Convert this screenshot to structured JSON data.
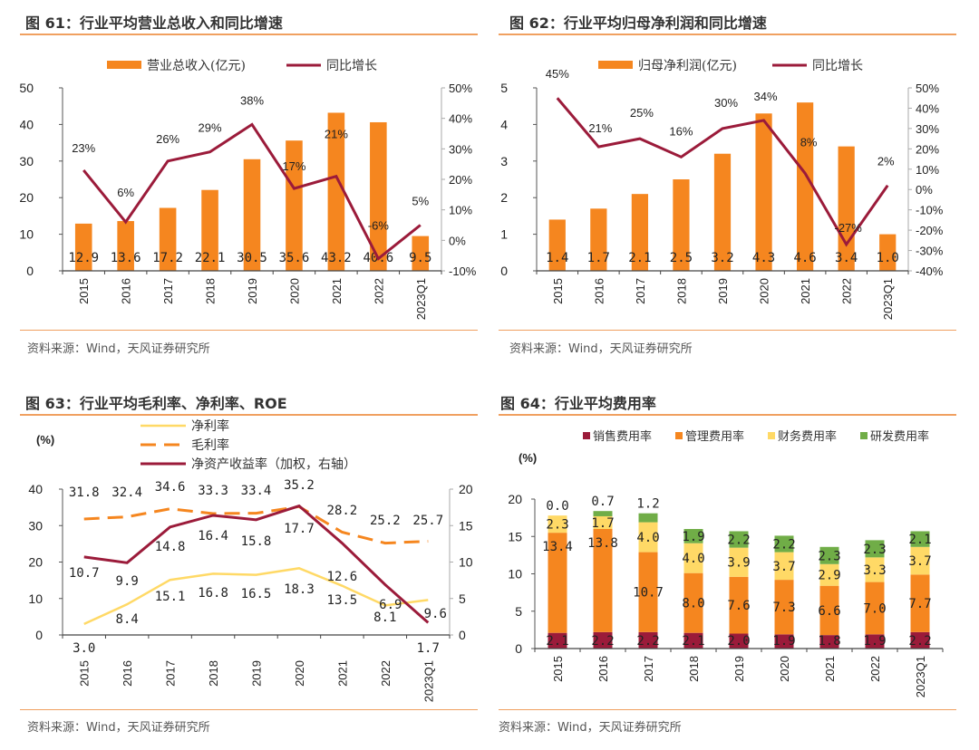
{
  "source_text": "资料来源：Wind，天风证券研究所",
  "colors": {
    "bar_orange": "#F5861F",
    "line_red": "#9B1B3A",
    "net_yellow": "#FFD966",
    "gross_orange": "#F5861F",
    "sales_red": "#9B1B3A",
    "admin_orange": "#F5861F",
    "finance_yellow": "#FFD966",
    "rd_green": "#70AD47",
    "rule": "#F0A060"
  },
  "chart_data": [
    {
      "id": "fig61",
      "type": "bar",
      "title": "图 61：行业平均营业总收入和同比增速",
      "categories": [
        "2015",
        "2016",
        "2017",
        "2018",
        "2019",
        "2020",
        "2021",
        "2022",
        "2023Q1"
      ],
      "series": [
        {
          "name": "营业总收入(亿元)",
          "type": "bar",
          "axis": "left",
          "values": [
            12.9,
            13.6,
            17.2,
            22.1,
            30.5,
            35.6,
            43.2,
            40.6,
            9.5
          ],
          "labels": [
            "12.9",
            "13.6",
            "17.2",
            "22.1",
            "30.5",
            "35.6",
            "43.2",
            "40.6",
            "9.5"
          ]
        },
        {
          "name": "同比增长",
          "type": "line",
          "axis": "right",
          "values": [
            23,
            6,
            26,
            29,
            38,
            17,
            21,
            -6,
            5
          ],
          "labels": [
            "23%",
            "6%",
            "26%",
            "29%",
            "38%",
            "17%",
            "21%",
            "-6%",
            "5%"
          ]
        }
      ],
      "ylim": [
        0,
        50
      ],
      "yticks": [
        "0",
        "10",
        "20",
        "30",
        "40",
        "50"
      ],
      "y2lim": [
        -10,
        50
      ],
      "y2ticks": [
        "-10%",
        "0%",
        "10%",
        "20%",
        "30%",
        "40%",
        "50%"
      ],
      "legend": "top-center"
    },
    {
      "id": "fig62",
      "type": "bar",
      "title": "图 62：行业平均归母净利润和同比增速",
      "categories": [
        "2015",
        "2016",
        "2017",
        "2018",
        "2019",
        "2020",
        "2021",
        "2022",
        "2023Q1"
      ],
      "series": [
        {
          "name": "归母净利润(亿元)",
          "type": "bar",
          "axis": "left",
          "values": [
            1.4,
            1.7,
            2.1,
            2.5,
            3.2,
            4.3,
            4.6,
            3.4,
            1.0
          ],
          "labels": [
            "1.4",
            "1.7",
            "2.1",
            "2.5",
            "3.2",
            "4.3",
            "4.6",
            "3.4",
            "1.0"
          ]
        },
        {
          "name": "同比增长",
          "type": "line",
          "axis": "right",
          "values": [
            45,
            21,
            25,
            16,
            30,
            34,
            8,
            -27,
            2
          ],
          "labels": [
            "45%",
            "21%",
            "25%",
            "16%",
            "30%",
            "34%",
            "8%",
            "-27%",
            "2%"
          ]
        }
      ],
      "ylim": [
        0,
        5
      ],
      "yticks": [
        "0",
        "1",
        "2",
        "3",
        "4",
        "5"
      ],
      "y2lim": [
        -40,
        50
      ],
      "y2ticks": [
        "-40%",
        "-30%",
        "-20%",
        "-10%",
        "0%",
        "10%",
        "20%",
        "30%",
        "40%",
        "50%"
      ],
      "legend": "top-center"
    },
    {
      "id": "fig63",
      "type": "line",
      "title": "图 63：行业平均毛利率、净利率、ROE",
      "unit_label": "(%)",
      "categories": [
        "2015",
        "2016",
        "2017",
        "2018",
        "2019",
        "2020",
        "2021",
        "2022",
        "2023Q1"
      ],
      "series": [
        {
          "name": "净利率",
          "axis": "left",
          "style": "solid",
          "values": [
            3.0,
            8.4,
            15.1,
            16.8,
            16.5,
            18.3,
            13.5,
            8.1,
            9.6
          ],
          "labels": [
            "3.0",
            "8.4",
            "15.1",
            "16.8",
            "16.5",
            "18.3",
            "13.5",
            "8.1",
            "9.6"
          ]
        },
        {
          "name": "毛利率",
          "axis": "left",
          "style": "dashed",
          "values": [
            31.8,
            32.4,
            34.6,
            33.3,
            33.4,
            35.2,
            28.2,
            25.2,
            25.7
          ],
          "labels": [
            "31.8",
            "32.4",
            "34.6",
            "33.3",
            "33.4",
            "35.2",
            "28.2",
            "25.2",
            "25.7"
          ]
        },
        {
          "name": "净资产收益率（加权，右轴）",
          "axis": "right",
          "style": "solid",
          "values": [
            10.7,
            9.9,
            14.8,
            16.4,
            15.8,
            17.7,
            12.6,
            6.9,
            1.7
          ],
          "labels": [
            "10.7",
            "9.9",
            "14.8",
            "16.4",
            "15.8",
            "17.7",
            "12.6",
            "6.9",
            "1.7"
          ]
        }
      ],
      "ylim": [
        0,
        40
      ],
      "yticks": [
        "0",
        "10",
        "20",
        "30",
        "40"
      ],
      "y2lim": [
        0,
        20
      ],
      "y2ticks": [
        "0",
        "5",
        "10",
        "15",
        "20"
      ],
      "legend": "top-left"
    },
    {
      "id": "fig64",
      "type": "bar",
      "stacked": true,
      "title": "图 64：行业平均费用率",
      "unit_label": "(%)",
      "categories": [
        "2015",
        "2016",
        "2017",
        "2018",
        "2019",
        "2020",
        "2021",
        "2022",
        "2023Q1"
      ],
      "series": [
        {
          "name": "销售费用率",
          "values": [
            2.1,
            2.2,
            2.2,
            2.1,
            2.0,
            1.9,
            1.8,
            1.9,
            2.2
          ],
          "labels": [
            "2.1",
            "2.2",
            "2.2",
            "2.1",
            "2.0",
            "1.9",
            "1.8",
            "1.9",
            "2.2"
          ]
        },
        {
          "name": "管理费用率",
          "values": [
            13.4,
            13.8,
            10.7,
            8.0,
            7.6,
            7.3,
            6.6,
            7.0,
            7.7
          ],
          "labels": [
            "13.4",
            "13.8",
            "10.7",
            "8.0",
            "7.6",
            "7.3",
            "6.6",
            "7.0",
            "7.7"
          ]
        },
        {
          "name": "财务费用率",
          "values": [
            2.3,
            1.7,
            4.0,
            4.0,
            3.9,
            3.7,
            2.9,
            3.3,
            3.7
          ],
          "labels": [
            "2.3",
            "1.7",
            "4.0",
            "4.0",
            "3.9",
            "3.7",
            "2.9",
            "3.3",
            "3.7"
          ]
        },
        {
          "name": "研发费用率",
          "values": [
            0.0,
            0.7,
            1.2,
            1.9,
            2.2,
            2.2,
            2.3,
            2.3,
            2.1
          ],
          "labels": [
            "0.0",
            "0.7",
            "1.2",
            "1.9",
            "2.2",
            "2.2",
            "2.3",
            "2.3",
            "2.1"
          ]
        }
      ],
      "ylim": [
        0,
        20
      ],
      "yticks": [
        "0",
        "5",
        "10",
        "15",
        "20"
      ],
      "legend": "top-center"
    }
  ]
}
